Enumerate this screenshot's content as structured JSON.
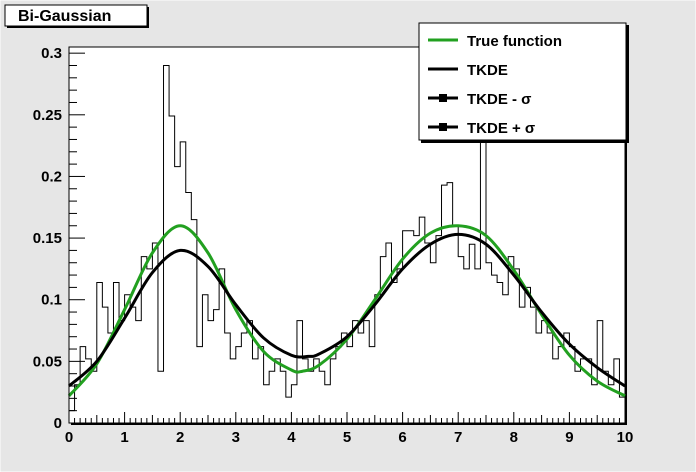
{
  "chart_data": {
    "type": "line",
    "title": "Bi-Gaussian",
    "xlim": [
      0,
      10
    ],
    "ylim": [
      0,
      0.305
    ],
    "x_ticks": [
      0,
      1,
      2,
      3,
      4,
      5,
      6,
      7,
      8,
      9,
      10
    ],
    "x_tick_labels": [
      "0",
      "1",
      "2",
      "3",
      "4",
      "5",
      "6",
      "7",
      "8",
      "9",
      "10"
    ],
    "y_ticks": [
      0,
      0.05,
      0.1,
      0.15,
      0.2,
      0.25,
      0.3
    ],
    "y_tick_labels": [
      "0",
      "0.05",
      "0.1",
      "0.15",
      "0.2",
      "0.25",
      "0.3"
    ],
    "grid": false,
    "legend_position": "top-right",
    "legend": [
      {
        "label": "True function",
        "color": "#22a020",
        "marker": "none"
      },
      {
        "label": "TKDE",
        "color": "#000000",
        "marker": "none"
      },
      {
        "label": "TKDE - σ",
        "color": "#000000",
        "marker": "square"
      },
      {
        "label": "TKDE + σ",
        "color": "#000000",
        "marker": "square"
      }
    ],
    "histogram": {
      "color": "#000000",
      "bin_edges_start": 0,
      "bin_width": 0.1,
      "values": [
        0.01,
        0.031,
        0.062,
        0.052,
        0.042,
        0.114,
        0.094,
        0.073,
        0.114,
        0.083,
        0.104,
        0.094,
        0.083,
        0.135,
        0.125,
        0.146,
        0.042,
        0.29,
        0.249,
        0.208,
        0.228,
        0.187,
        0.165,
        0.062,
        0.104,
        0.083,
        0.092,
        0.125,
        0.073,
        0.052,
        0.062,
        0.073,
        0.083,
        0.052,
        0.062,
        0.031,
        0.042,
        0.052,
        0.042,
        0.021,
        0.031,
        0.083,
        0.052,
        0.042,
        0.052,
        0.042,
        0.031,
        0.052,
        0.062,
        0.073,
        0.062,
        0.083,
        0.073,
        0.083,
        0.062,
        0.104,
        0.135,
        0.146,
        0.114,
        0.125,
        0.156,
        0.156,
        0.152,
        0.167,
        0.146,
        0.13,
        0.152,
        0.193,
        0.195,
        0.16,
        0.135,
        0.125,
        0.145,
        0.125,
        0.239,
        0.13,
        0.12,
        0.114,
        0.104,
        0.135,
        0.125,
        0.094,
        0.11,
        0.094,
        0.073,
        0.083,
        0.073,
        0.052,
        0.062,
        0.073,
        0.062,
        0.042,
        0.052,
        0.052,
        0.031,
        0.083,
        0.042,
        0.031,
        0.052,
        0.021
      ]
    },
    "series": [
      {
        "name": "True function",
        "color": "#22a020",
        "x": [
          0.0,
          0.5,
          1.0,
          1.5,
          2.0,
          2.5,
          3.0,
          3.5,
          4.0,
          4.2,
          4.5,
          5.0,
          5.5,
          6.0,
          6.5,
          7.0,
          7.5,
          8.0,
          8.5,
          9.0,
          9.5,
          10.0
        ],
        "y": [
          0.022,
          0.048,
          0.092,
          0.138,
          0.16,
          0.138,
          0.092,
          0.058,
          0.043,
          0.042,
          0.047,
          0.068,
          0.1,
          0.133,
          0.154,
          0.16,
          0.152,
          0.124,
          0.088,
          0.055,
          0.034,
          0.022
        ]
      },
      {
        "name": "TKDE",
        "color": "#000000",
        "x": [
          0.0,
          0.5,
          1.0,
          1.5,
          2.0,
          2.5,
          3.0,
          3.5,
          4.0,
          4.3,
          4.5,
          5.0,
          5.5,
          6.0,
          6.5,
          7.0,
          7.5,
          8.0,
          8.5,
          9.0,
          9.5,
          10.0
        ],
        "y": [
          0.03,
          0.05,
          0.085,
          0.122,
          0.14,
          0.127,
          0.096,
          0.069,
          0.055,
          0.054,
          0.056,
          0.07,
          0.096,
          0.125,
          0.145,
          0.153,
          0.145,
          0.12,
          0.09,
          0.064,
          0.045,
          0.03
        ]
      }
    ]
  }
}
